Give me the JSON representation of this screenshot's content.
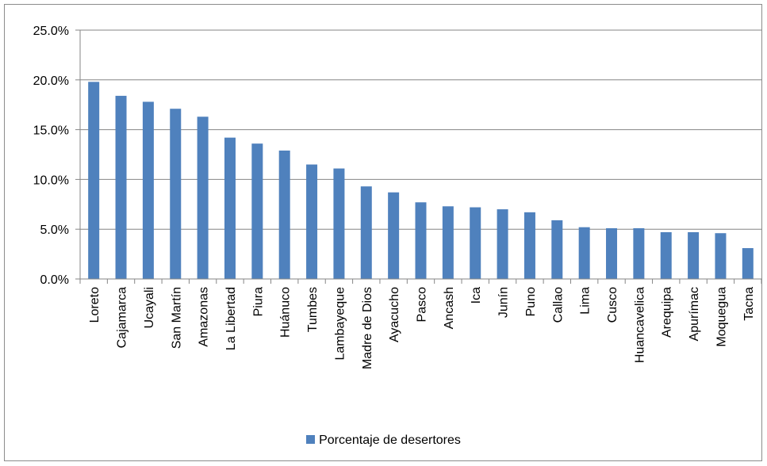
{
  "colors": {
    "bar": "#4f81bd",
    "grid": "#868686",
    "axis": "#868686"
  },
  "legend": {
    "label": "Porcentaje de desertores"
  },
  "chart_data": {
    "type": "bar",
    "title": "",
    "xlabel": "",
    "ylabel": "",
    "ylim": [
      0,
      0.25
    ],
    "y_ticks": [
      {
        "value": 0.0,
        "label": "0.0%"
      },
      {
        "value": 0.05,
        "label": "5.0%"
      },
      {
        "value": 0.1,
        "label": "10.0%"
      },
      {
        "value": 0.15,
        "label": "15.0%"
      },
      {
        "value": 0.2,
        "label": "20.0%"
      },
      {
        "value": 0.25,
        "label": "25.0%"
      }
    ],
    "grid": true,
    "legend_position": "bottom",
    "categories": [
      "Loreto",
      "Cajamarca",
      "Ucayali",
      "San Martín",
      "Amazonas",
      "La Libertad",
      "Piura",
      "Huánuco",
      "Tumbes",
      "Lambayeque",
      "Madre de Dios",
      "Ayacucho",
      "Pasco",
      "Ancash",
      "Ica",
      "Junín",
      "Puno",
      "Callao",
      "Lima",
      "Cusco",
      "Huancavelica",
      "Arequipa",
      "Apurímac",
      "Moquegua",
      "Tacna"
    ],
    "series": [
      {
        "name": "Porcentaje de desertores",
        "values": [
          0.198,
          0.184,
          0.178,
          0.171,
          0.163,
          0.142,
          0.136,
          0.129,
          0.115,
          0.111,
          0.093,
          0.087,
          0.077,
          0.073,
          0.072,
          0.07,
          0.067,
          0.059,
          0.052,
          0.051,
          0.051,
          0.047,
          0.047,
          0.046,
          0.031
        ]
      }
    ]
  }
}
